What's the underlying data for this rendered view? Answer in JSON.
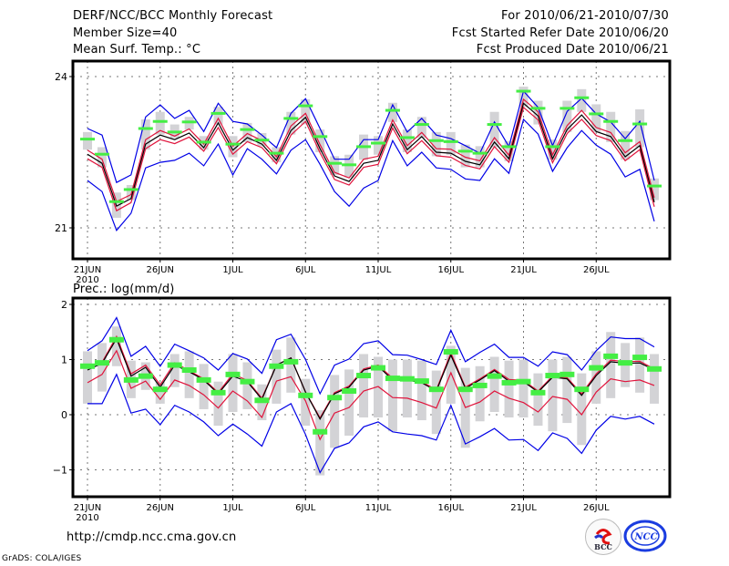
{
  "header": {
    "title": "DERF/NCC/BCC Monthly Forecast",
    "member_size": "Member Size=40",
    "variable_top": "Mean Surf. Temp.: °C",
    "period": "For 2010/06/21-2010/07/30",
    "started": "Fcst Started Refer Date 2010/06/20",
    "produced": "Fcst Produced Date 2010/06/21"
  },
  "footer": {
    "url": "http://cmdp.ncc.cma.gov.cn",
    "credit": "GrADS: COLA/IGES",
    "logo_bcc": "BCC",
    "logo_ncc": "NCC"
  },
  "colors": {
    "mean": "#000000",
    "spread": "#e0143c",
    "envelope": "#0000e6",
    "median": "#44ee44",
    "box": "#d3d3d6"
  },
  "chart_data": [
    {
      "type": "line",
      "title": "Mean Surf. Temp.: °C",
      "xlabel": "",
      "ylabel": "°C",
      "ylim": [
        20.4,
        24.3
      ],
      "yticks": [
        21,
        24
      ],
      "grid": true,
      "x_start": "2010-06-21",
      "x_ticks": [
        {
          "day": 0,
          "label": "21JUN",
          "sub": "2010"
        },
        {
          "day": 5,
          "label": "26JUN"
        },
        {
          "day": 10,
          "label": "1JUL"
        },
        {
          "day": 15,
          "label": "6JUL"
        },
        {
          "day": 20,
          "label": "11JUL"
        },
        {
          "day": 25,
          "label": "16JUL"
        },
        {
          "day": 30,
          "label": "21JUL"
        },
        {
          "day": 35,
          "label": "26JUL"
        }
      ],
      "series": [
        {
          "name": "ensemble-mean",
          "color": "mean",
          "values": [
            22.46,
            22.28,
            21.43,
            21.58,
            22.66,
            22.84,
            22.75,
            22.88,
            22.59,
            23.08,
            22.54,
            22.79,
            22.66,
            22.34,
            22.93,
            23.19,
            22.57,
            22.03,
            21.92,
            22.28,
            22.34,
            23.06,
            22.55,
            22.81,
            22.5,
            22.48,
            22.32,
            22.25,
            22.7,
            22.37,
            23.47,
            23.22,
            22.37,
            22.95,
            23.24,
            22.91,
            22.81,
            22.41,
            22.63,
            21.51
          ]
        },
        {
          "name": "mean-plus-spread",
          "color": "spread",
          "values": [
            22.54,
            22.36,
            21.52,
            21.66,
            22.75,
            22.93,
            22.82,
            22.96,
            22.66,
            23.17,
            22.62,
            22.87,
            22.73,
            22.41,
            23.02,
            23.27,
            22.65,
            22.1,
            21.99,
            22.36,
            22.42,
            23.14,
            22.63,
            22.89,
            22.57,
            22.56,
            22.4,
            22.33,
            22.79,
            22.44,
            23.55,
            23.3,
            22.45,
            23.03,
            23.33,
            22.99,
            22.89,
            22.49,
            22.71,
            21.6
          ]
        },
        {
          "name": "mean-minus-spread",
          "color": "spread",
          "values": [
            22.37,
            22.2,
            21.34,
            21.5,
            22.57,
            22.75,
            22.67,
            22.8,
            22.52,
            22.99,
            22.46,
            22.71,
            22.59,
            22.27,
            22.84,
            23.11,
            22.49,
            21.96,
            21.85,
            22.2,
            22.26,
            22.98,
            22.47,
            22.73,
            22.43,
            22.4,
            22.24,
            22.17,
            22.61,
            22.3,
            23.39,
            23.14,
            22.29,
            22.87,
            23.15,
            22.83,
            22.73,
            22.33,
            22.55,
            21.42
          ]
        },
        {
          "name": "upper-envelope",
          "color": "envelope",
          "values": [
            22.97,
            22.84,
            21.9,
            22.05,
            23.2,
            23.44,
            23.17,
            23.33,
            22.91,
            23.47,
            23.11,
            23.06,
            22.84,
            22.59,
            23.27,
            23.56,
            22.97,
            22.36,
            22.36,
            22.75,
            22.75,
            23.44,
            22.9,
            23.17,
            22.84,
            22.77,
            22.63,
            22.48,
            23.1,
            22.61,
            23.71,
            23.39,
            22.63,
            23.31,
            23.57,
            23.26,
            23.1,
            22.77,
            23.11,
            21.94
          ]
        },
        {
          "name": "lower-envelope",
          "color": "envelope",
          "values": [
            21.94,
            21.72,
            20.95,
            21.29,
            22.19,
            22.3,
            22.34,
            22.48,
            22.23,
            22.66,
            22.05,
            22.57,
            22.36,
            22.07,
            22.54,
            22.75,
            22.26,
            21.72,
            21.43,
            21.79,
            21.94,
            22.73,
            22.23,
            22.5,
            22.19,
            22.16,
            21.97,
            21.94,
            22.37,
            22.08,
            23.15,
            22.86,
            22.12,
            22.59,
            22.93,
            22.64,
            22.46,
            22.01,
            22.16,
            21.13
          ]
        },
        {
          "name": "median",
          "color": "median",
          "values": [
            22.76,
            22.46,
            21.52,
            21.76,
            22.97,
            23.11,
            22.9,
            23.1,
            22.7,
            23.27,
            22.66,
            22.95,
            22.74,
            22.48,
            23.17,
            23.42,
            22.81,
            22.28,
            22.25,
            22.61,
            22.68,
            23.33,
            22.79,
            23.05,
            22.73,
            22.71,
            22.52,
            22.48,
            23.05,
            22.61,
            23.71,
            23.37,
            22.61,
            23.37,
            23.58,
            23.26,
            23.11,
            22.73,
            23.06,
            21.83
          ]
        },
        {
          "name": "box-high",
          "color": "box",
          "values": [
            22.9,
            22.6,
            21.7,
            21.85,
            23.15,
            23.3,
            23.05,
            23.2,
            22.82,
            23.4,
            22.82,
            23.08,
            22.88,
            22.6,
            23.3,
            23.55,
            22.95,
            22.42,
            22.45,
            22.85,
            22.82,
            23.48,
            22.95,
            23.2,
            22.9,
            22.9,
            22.65,
            22.62,
            23.3,
            22.72,
            23.8,
            23.52,
            22.75,
            23.52,
            23.75,
            23.45,
            23.3,
            22.92,
            23.35,
            21.98
          ]
        },
        {
          "name": "box-low",
          "color": "box",
          "values": [
            22.55,
            22.2,
            21.2,
            21.55,
            22.55,
            22.85,
            22.78,
            22.95,
            22.55,
            23.05,
            22.4,
            22.7,
            22.62,
            22.3,
            22.85,
            23.05,
            22.5,
            22.05,
            22.0,
            22.35,
            22.45,
            23.1,
            22.5,
            22.78,
            22.42,
            22.45,
            22.2,
            22.2,
            22.6,
            22.32,
            23.4,
            23.05,
            22.35,
            22.9,
            23.3,
            22.9,
            22.7,
            22.35,
            22.6,
            21.55
          ]
        }
      ]
    },
    {
      "type": "line",
      "title": "Prec.: log(mm/d)",
      "xlabel": "",
      "ylabel": "log(mm/d)",
      "ylim": [
        -1.5,
        2.1
      ],
      "yticks": [
        -1,
        0,
        1,
        2
      ],
      "grid": true,
      "x_start": "2010-06-21",
      "x_ticks": [
        {
          "day": 0,
          "label": "21JUN",
          "sub": "2010"
        },
        {
          "day": 5,
          "label": "26JUN"
        },
        {
          "day": 10,
          "label": "1JUL"
        },
        {
          "day": 15,
          "label": "6JUL"
        },
        {
          "day": 20,
          "label": "11JUL"
        },
        {
          "day": 25,
          "label": "16JUL"
        },
        {
          "day": 30,
          "label": "21JUL"
        },
        {
          "day": 35,
          "label": "26JUL"
        }
      ],
      "series": [
        {
          "name": "ensemble-mean",
          "color": "mean",
          "values": [
            0.81,
            0.93,
            1.38,
            0.7,
            0.86,
            0.5,
            0.9,
            0.78,
            0.63,
            0.38,
            0.7,
            0.6,
            0.28,
            0.9,
            1.03,
            0.41,
            -0.08,
            0.38,
            0.5,
            0.81,
            0.88,
            0.63,
            0.63,
            0.58,
            0.43,
            1.08,
            0.48,
            0.63,
            0.8,
            0.61,
            0.6,
            0.41,
            0.68,
            0.65,
            0.35,
            0.71,
            0.96,
            0.93,
            0.94,
            0.81
          ]
        },
        {
          "name": "mean-plus-spread",
          "color": "spread",
          "values": [
            0.86,
            0.95,
            1.42,
            0.74,
            0.9,
            0.54,
            0.94,
            0.8,
            0.65,
            0.4,
            0.74,
            0.62,
            0.3,
            0.9,
            1.03,
            0.41,
            -0.06,
            0.4,
            0.52,
            0.83,
            0.9,
            0.66,
            0.65,
            0.6,
            0.45,
            1.12,
            0.5,
            0.65,
            0.82,
            0.64,
            0.62,
            0.43,
            0.7,
            0.67,
            0.38,
            0.74,
            0.99,
            0.96,
            0.97,
            0.83
          ]
        },
        {
          "name": "mean-minus-spread",
          "color": "spread",
          "values": [
            0.58,
            0.73,
            1.16,
            0.48,
            0.61,
            0.28,
            0.63,
            0.53,
            0.36,
            0.12,
            0.43,
            0.25,
            -0.05,
            0.61,
            0.69,
            0.25,
            -0.45,
            0.03,
            0.13,
            0.43,
            0.51,
            0.31,
            0.3,
            0.22,
            0.12,
            0.76,
            0.13,
            0.23,
            0.43,
            0.3,
            0.22,
            0.05,
            0.33,
            0.28,
            0.0,
            0.41,
            0.65,
            0.6,
            0.63,
            0.53
          ]
        },
        {
          "name": "upper-envelope",
          "color": "envelope",
          "values": [
            1.16,
            1.34,
            1.76,
            1.06,
            1.24,
            0.88,
            1.28,
            1.16,
            1.03,
            0.81,
            1.11,
            1.01,
            0.75,
            1.36,
            1.46,
            1.0,
            0.38,
            0.9,
            1.01,
            1.29,
            1.34,
            1.09,
            1.08,
            1.0,
            0.91,
            1.53,
            0.96,
            1.13,
            1.28,
            1.04,
            1.04,
            0.88,
            1.14,
            1.09,
            0.81,
            1.16,
            1.41,
            1.38,
            1.38,
            1.23
          ]
        },
        {
          "name": "lower-envelope",
          "color": "envelope",
          "values": [
            0.2,
            0.2,
            0.73,
            0.03,
            0.1,
            -0.18,
            0.17,
            0.05,
            -0.13,
            -0.38,
            -0.17,
            -0.35,
            -0.57,
            0.05,
            0.2,
            -0.36,
            -1.05,
            -0.61,
            -0.51,
            -0.22,
            -0.13,
            -0.31,
            -0.35,
            -0.38,
            -0.46,
            0.17,
            -0.53,
            -0.4,
            -0.25,
            -0.46,
            -0.45,
            -0.65,
            -0.33,
            -0.43,
            -0.7,
            -0.28,
            -0.03,
            -0.08,
            -0.03,
            -0.17
          ]
        },
        {
          "name": "median",
          "color": "median",
          "values": [
            0.88,
            0.94,
            1.36,
            0.63,
            0.7,
            0.46,
            0.9,
            0.81,
            0.63,
            0.4,
            0.73,
            0.6,
            0.26,
            0.88,
            0.96,
            0.35,
            -0.31,
            0.31,
            0.43,
            0.71,
            0.85,
            0.66,
            0.65,
            0.61,
            0.46,
            1.14,
            0.46,
            0.53,
            0.7,
            0.58,
            0.6,
            0.4,
            0.71,
            0.73,
            0.46,
            0.85,
            1.06,
            0.94,
            1.04,
            0.83
          ]
        },
        {
          "name": "box-high",
          "color": "box",
          "values": [
            1.15,
            1.3,
            1.6,
            0.98,
            0.95,
            0.6,
            1.1,
            1.15,
            0.92,
            0.6,
            1.1,
            0.95,
            0.55,
            1.18,
            1.4,
            0.65,
            0.08,
            0.72,
            0.82,
            1.1,
            1.05,
            1.0,
            1.0,
            0.98,
            0.8,
            1.25,
            0.85,
            0.88,
            1.05,
            0.98,
            1.0,
            0.75,
            1.0,
            1.05,
            0.75,
            1.15,
            1.5,
            1.3,
            1.4,
            1.1
          ]
        },
        {
          "name": "box-low",
          "color": "box",
          "values": [
            0.2,
            0.42,
            0.88,
            0.3,
            0.45,
            0.2,
            0.5,
            0.3,
            0.1,
            -0.2,
            0.05,
            0.1,
            -0.1,
            0.2,
            0.4,
            -0.2,
            -1.1,
            -0.6,
            -0.38,
            -0.05,
            -0.05,
            -0.3,
            -0.05,
            -0.1,
            -0.35,
            0.2,
            -0.6,
            -0.12,
            0.05,
            -0.05,
            -0.05,
            -0.2,
            -0.3,
            -0.15,
            -0.55,
            0.2,
            0.3,
            0.5,
            0.4,
            0.2
          ]
        }
      ]
    }
  ],
  "panels": [
    {
      "label": "Mean Surf. Temp.: °C"
    },
    {
      "label": "Prec.: log(mm/d)"
    }
  ]
}
